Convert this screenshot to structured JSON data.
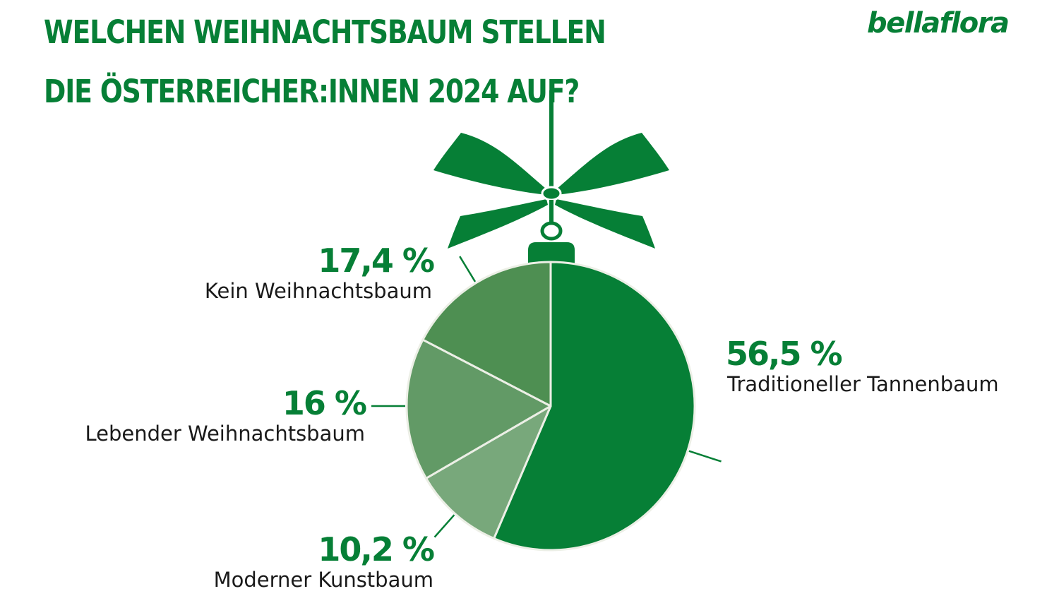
{
  "title": {
    "line1": "WELCHEN WEIHNACHTSBAUM STELLEN",
    "line2": "DIE ÖSTERREICHER:INNEN 2024 AUF?"
  },
  "brand": "bellaflora",
  "colors": {
    "primary": "#067f36",
    "slice_traditionell": "#067f36",
    "slice_kein": "#4e8f52",
    "slice_lebend": "#629a66",
    "slice_modern": "#78a87b",
    "text_dark": "#1a1a1a",
    "background": "#ffffff"
  },
  "chart_data": {
    "type": "pie",
    "title": "WELCHEN WEIHNACHTSBAUM STELLEN DIE ÖSTERREICHER:INNEN 2024 AUF?",
    "unit": "%",
    "slices": [
      {
        "label": "Traditioneller Tannenbaum",
        "value": 56.5,
        "display": "56,5 %"
      },
      {
        "label": "Moderner Kunstbaum",
        "value": 10.2,
        "display": "10,2 %"
      },
      {
        "label": "Lebender Weihnachtsbaum",
        "value": 16,
        "display": "16 %"
      },
      {
        "label": "Kein Weihnachtsbaum",
        "value": 17.4,
        "display": "17,4 %"
      }
    ]
  }
}
